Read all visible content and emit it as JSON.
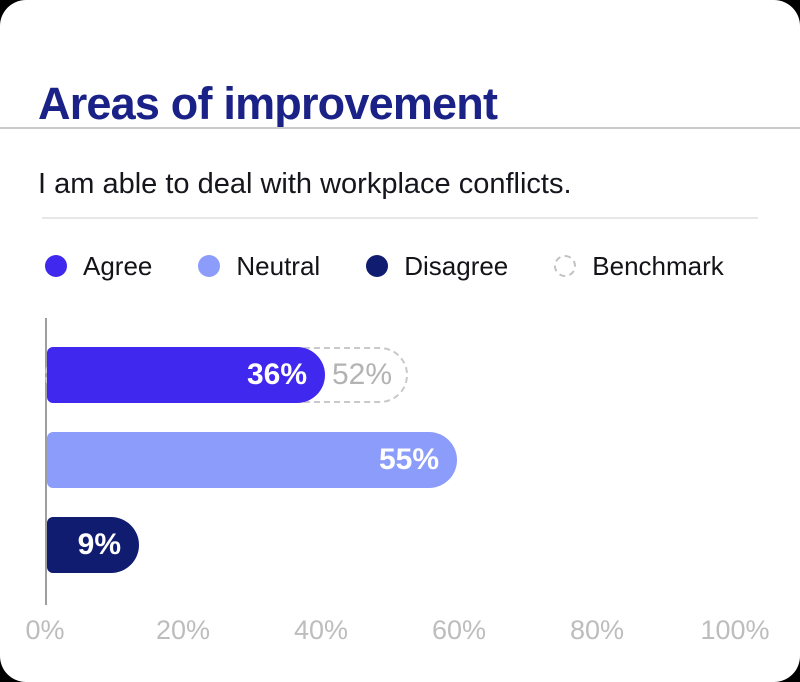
{
  "card": {
    "title": "Areas of improvement",
    "subtitle": "I am able to deal with workplace conflicts."
  },
  "legend": {
    "items": [
      {
        "label": "Agree",
        "color": "#4028ee",
        "type": "solid"
      },
      {
        "label": "Neutral",
        "color": "#8c9cfa",
        "type": "solid"
      },
      {
        "label": "Disagree",
        "color": "#101c70",
        "type": "solid"
      },
      {
        "label": "Benchmark",
        "color": "#c2c2c2",
        "type": "dashed"
      }
    ]
  },
  "chart_data": {
    "type": "bar",
    "orientation": "horizontal",
    "title": "Areas of improvement",
    "subtitle": "I am able to deal with workplace conflicts.",
    "categories": [
      "Agree",
      "Neutral",
      "Disagree"
    ],
    "values": [
      36,
      55,
      9
    ],
    "value_labels": [
      "36%",
      "55%",
      "9%"
    ],
    "series_colors": [
      "#4028ee",
      "#8c9cfa",
      "#101c70"
    ],
    "benchmark": {
      "category": "Agree",
      "value": 52,
      "label": "52%",
      "style": "dashed-outline"
    },
    "xlim": [
      0,
      100
    ],
    "x_ticks": [
      "0%",
      "20%",
      "40%",
      "60%",
      "80%",
      "100%"
    ],
    "grid": false,
    "legend_position": "top",
    "legend_entries": [
      "Agree",
      "Neutral",
      "Disagree",
      "Benchmark"
    ]
  },
  "colors": {
    "card_background": "#ffffff",
    "page_background": "#000000",
    "title_text": "#1a2187",
    "subtitle_text": "#15151d",
    "legend_text": "#131318",
    "bar_label_text": "#ffffff",
    "benchmark_text": "#b3b3b3",
    "benchmark_dash": "#c9c9c9",
    "axis_line": "#9e9e9e",
    "tick_text": "#bdbdbd",
    "divider_full": "#cacaca",
    "divider_inset": "#e7e7e7"
  }
}
